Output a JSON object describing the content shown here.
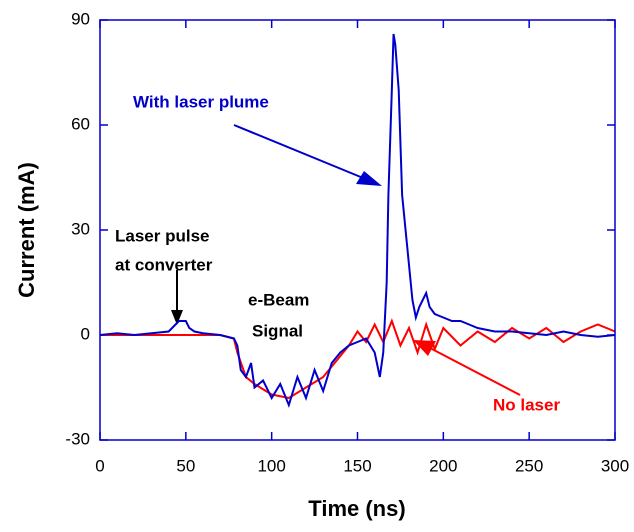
{
  "chart_data": {
    "type": "line",
    "x_label": "Time (ns)",
    "y_label": "Current (mA)",
    "xlim": [
      0,
      300
    ],
    "xticks": [
      0,
      50,
      100,
      150,
      200,
      250,
      300
    ],
    "ylim": [
      -30,
      90
    ],
    "yticks": [
      -30,
      0,
      30,
      60,
      90
    ],
    "annotations": [
      {
        "text": "With laser plume",
        "color": "#0000cc"
      },
      {
        "text": "Laser pulse",
        "color": "#000000"
      },
      {
        "text": "at converter",
        "color": "#000000"
      },
      {
        "text": "e-Beam",
        "color": "#000000"
      },
      {
        "text": "Signal",
        "color": "#000000"
      },
      {
        "text": "No laser",
        "color": "#ff0000"
      }
    ],
    "series": [
      {
        "color": "#ff0000",
        "x": [
          0,
          10,
          20,
          30,
          40,
          50,
          60,
          70,
          78,
          80,
          85,
          90,
          100,
          110,
          120,
          130,
          140,
          145,
          150,
          155,
          160,
          165,
          170,
          175,
          180,
          185,
          190,
          195,
          200,
          210,
          220,
          230,
          240,
          250,
          260,
          270,
          280,
          290,
          300
        ],
        "values": [
          0,
          0,
          0,
          0,
          0,
          0,
          0,
          0,
          -1,
          -5,
          -12,
          -14,
          -17,
          -18,
          -15,
          -12,
          -6,
          -3,
          1,
          -2,
          3,
          -2,
          4,
          -3,
          2,
          -5,
          3,
          -4,
          2,
          -3,
          1,
          -2,
          2,
          -1,
          2,
          -2,
          1,
          3,
          1
        ]
      },
      {
        "color": "#0000cc",
        "x": [
          0,
          10,
          20,
          30,
          40,
          44,
          46,
          50,
          52,
          55,
          60,
          70,
          78,
          80,
          82,
          85,
          88,
          90,
          95,
          100,
          105,
          110,
          115,
          120,
          125,
          130,
          135,
          140,
          145,
          150,
          155,
          160,
          163,
          165,
          167,
          168,
          170,
          171,
          172,
          174,
          176,
          178,
          180,
          182,
          184,
          186,
          188,
          190,
          192,
          195,
          200,
          205,
          210,
          215,
          220,
          230,
          240,
          250,
          260,
          270,
          280,
          290,
          300
        ],
        "values": [
          0,
          0.5,
          0,
          0.5,
          1,
          3,
          4,
          4,
          2,
          1,
          0.5,
          0,
          -1,
          -3,
          -10,
          -12,
          -8,
          -15,
          -13,
          -18,
          -14,
          -20,
          -12,
          -18,
          -10,
          -16,
          -8,
          -5,
          -3,
          -2,
          -1,
          -5,
          -12,
          -5,
          15,
          40,
          70,
          86,
          83,
          70,
          40,
          30,
          20,
          10,
          5,
          8,
          10,
          12,
          8,
          6,
          5,
          4,
          4,
          3,
          2,
          1,
          1,
          0.5,
          0,
          1,
          0,
          -0.5,
          0
        ]
      }
    ]
  }
}
